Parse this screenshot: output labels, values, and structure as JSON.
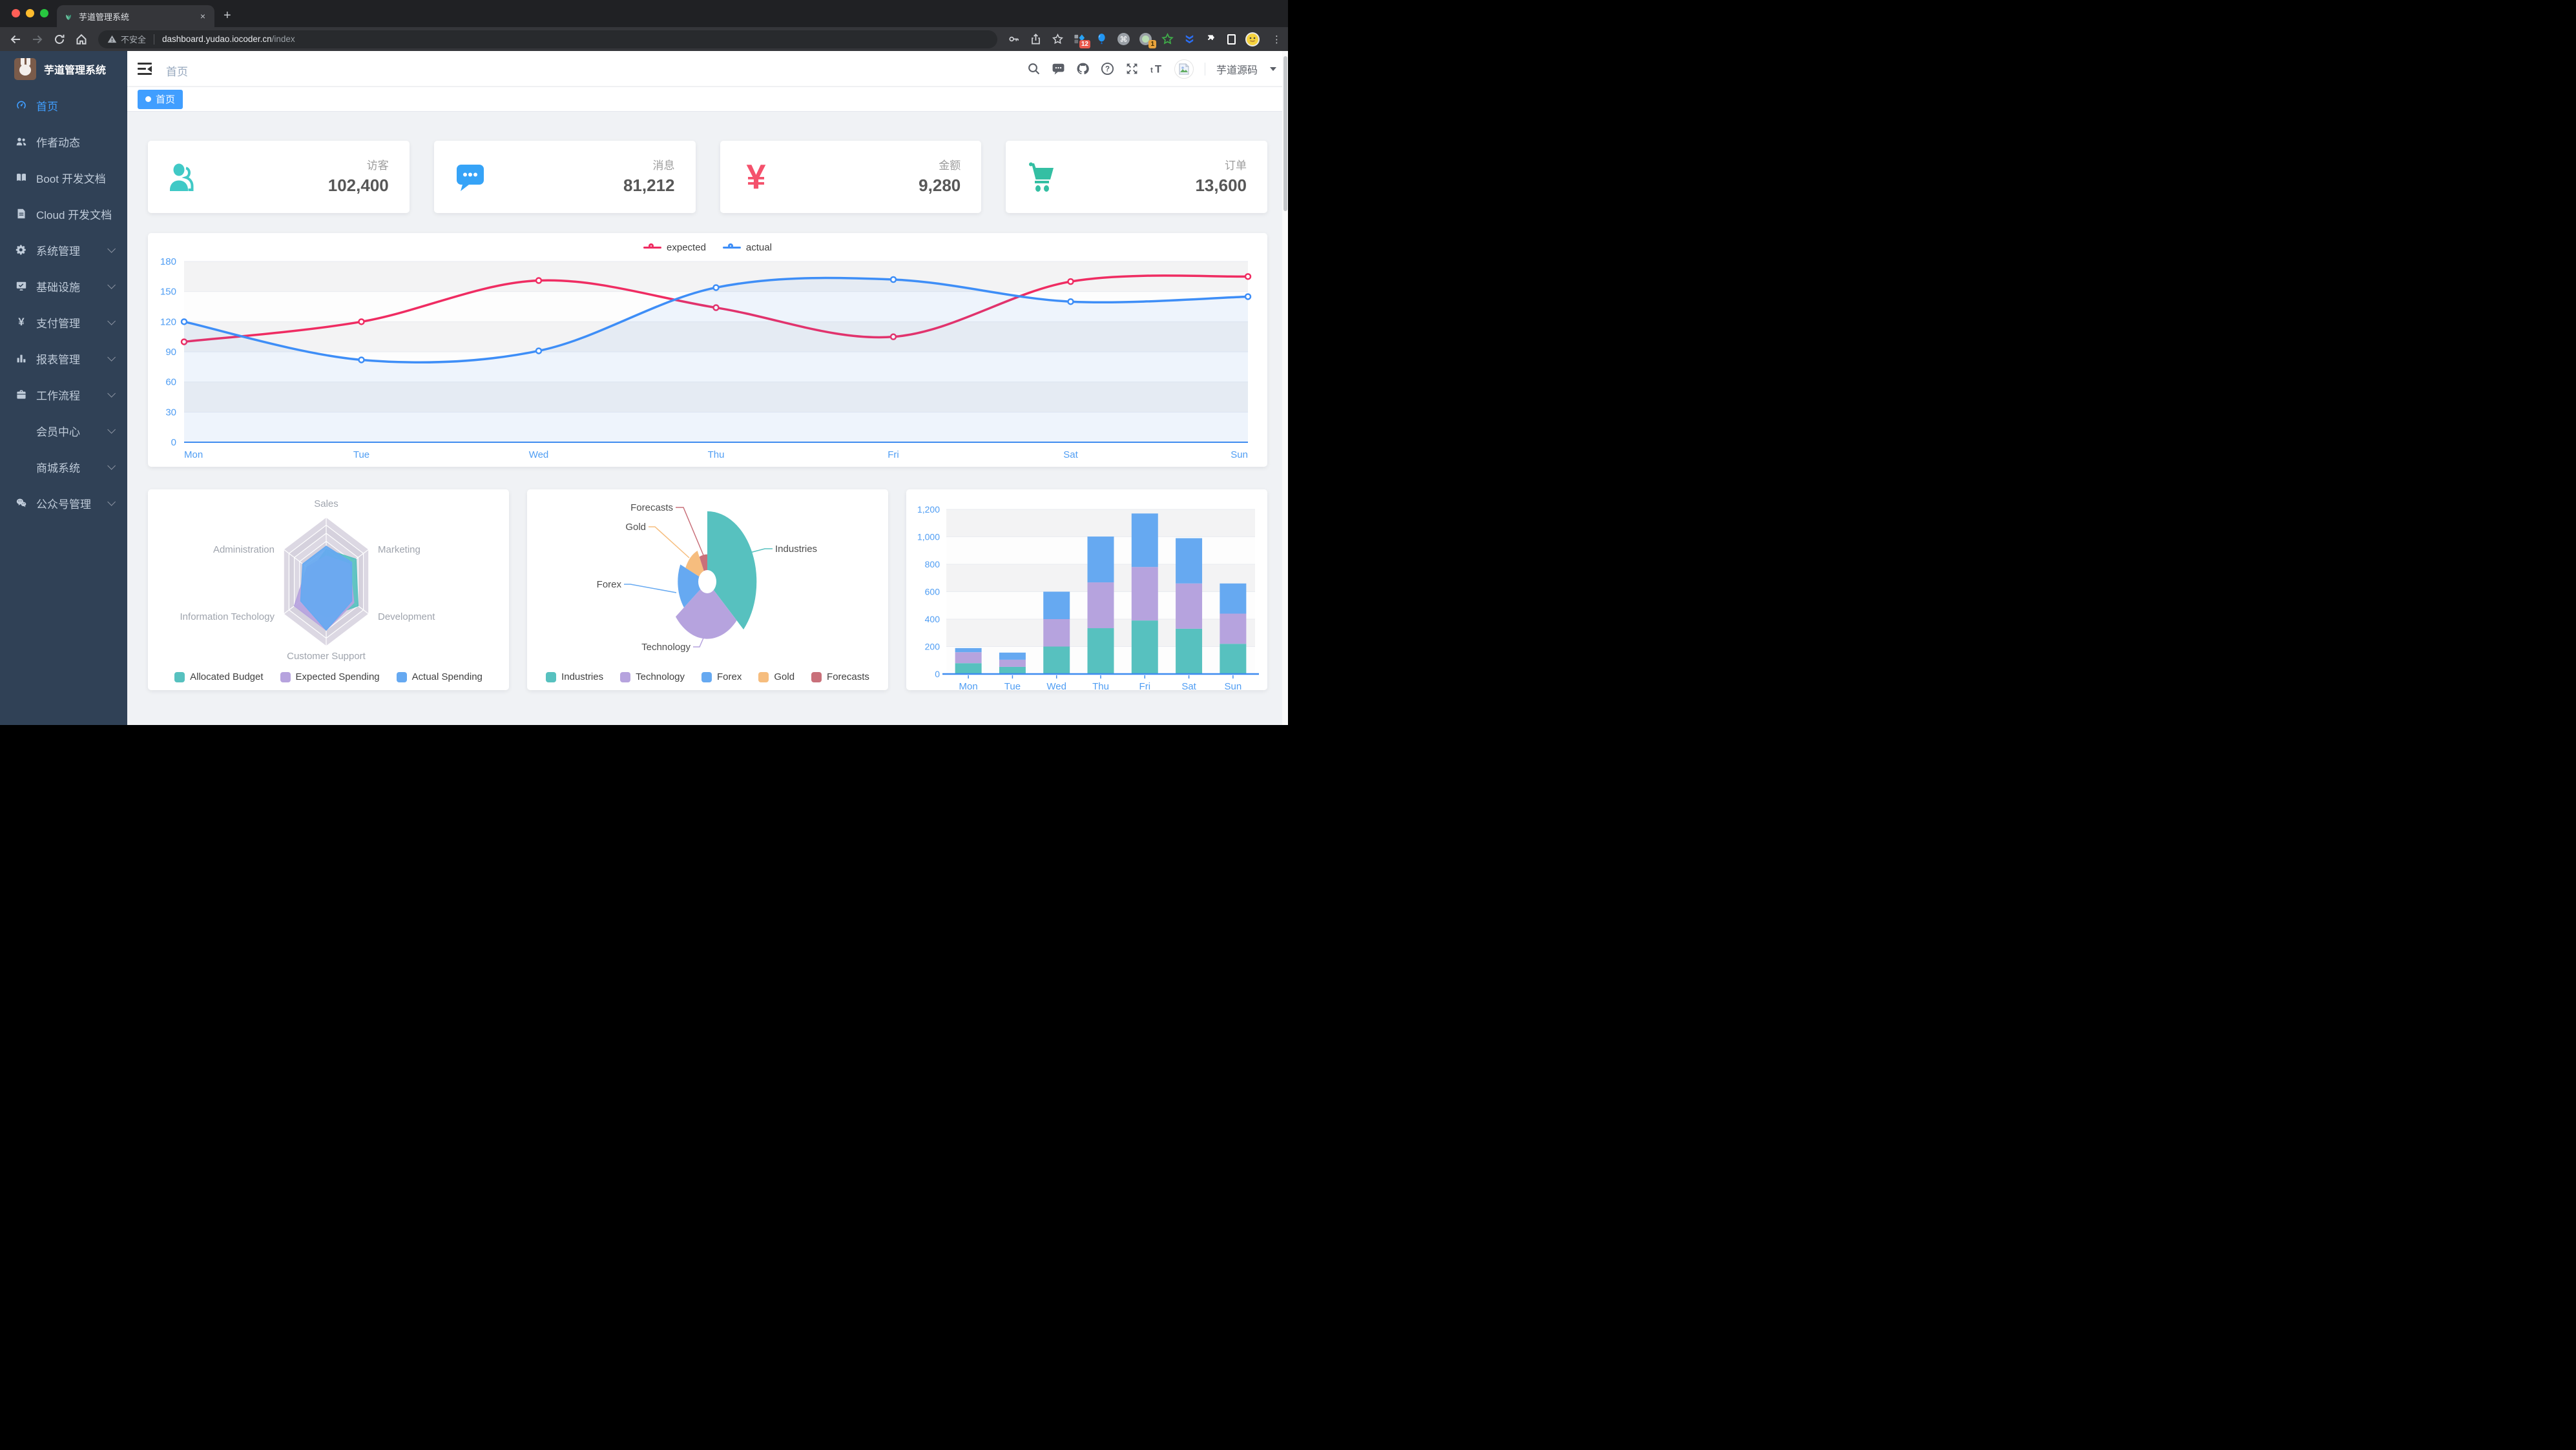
{
  "browser": {
    "tab_title": "芋道管理系统",
    "new_tab_label": "+",
    "close_tab_label": "×",
    "security_label": "不安全",
    "url_host": "dashboard.yudao.iocoder.cn",
    "url_path": "/index",
    "extension_badge_tabs": "12",
    "extension_badge_one": "1",
    "menu_dots": "⋮"
  },
  "sidebar": {
    "title": "芋道管理系统",
    "items": [
      {
        "label": "首页",
        "icon": "dashboard-icon",
        "active": true
      },
      {
        "label": "作者动态",
        "icon": "people-icon"
      },
      {
        "label": "Boot 开发文档",
        "icon": "book-icon"
      },
      {
        "label": "Cloud 开发文档",
        "icon": "doc-icon"
      },
      {
        "label": "系统管理",
        "icon": "gear-icon",
        "chevron": true
      },
      {
        "label": "基础设施",
        "icon": "monitor-icon",
        "chevron": true
      },
      {
        "label": "支付管理",
        "icon": "yen-icon",
        "chevron": true
      },
      {
        "label": "报表管理",
        "icon": "chart-icon",
        "chevron": true
      },
      {
        "label": "工作流程",
        "icon": "briefcase-icon",
        "chevron": true
      },
      {
        "label": "会员中心",
        "indent": true,
        "chevron": true
      },
      {
        "label": "商城系统",
        "indent": true,
        "chevron": true
      },
      {
        "label": "公众号管理",
        "icon": "wechat-icon",
        "chevron": true
      }
    ]
  },
  "header": {
    "breadcrumb": "首页",
    "username": "芋道源码"
  },
  "tags": [
    {
      "label": "首页",
      "active": true
    }
  ],
  "stats": [
    {
      "label": "访客",
      "value": "102,400",
      "icon": "peoples-icon",
      "color": "#40c9c6"
    },
    {
      "label": "消息",
      "value": "81,212",
      "icon": "message-icon",
      "color": "#36a3f7"
    },
    {
      "label": "金额",
      "value": "9,280",
      "icon": "money-icon",
      "color": "#f4516c"
    },
    {
      "label": "订单",
      "value": "13,600",
      "icon": "shopping-icon",
      "color": "#34bfa3"
    }
  ],
  "chart_data": [
    {
      "type": "line",
      "x": [
        "Mon",
        "Tue",
        "Wed",
        "Thu",
        "Fri",
        "Sat",
        "Sun"
      ],
      "series": [
        {
          "name": "expected",
          "color": "#ef2c62",
          "values": [
            100,
            120,
            161,
            134,
            105,
            160,
            165
          ],
          "area": false
        },
        {
          "name": "actual",
          "color": "#3e8ef7",
          "values": [
            120,
            82,
            91,
            154,
            162,
            140,
            145
          ],
          "area": true
        }
      ],
      "ylim": [
        0,
        180
      ],
      "ytick": 30,
      "legend_position": "top",
      "grid": true
    },
    {
      "type": "radar",
      "indicators": [
        {
          "name": "Sales",
          "max": 10000
        },
        {
          "name": "Marketing",
          "max": 20000
        },
        {
          "name": "Development",
          "max": 20000
        },
        {
          "name": "Customer Support",
          "max": 20000
        },
        {
          "name": "Information Techology",
          "max": 20000
        },
        {
          "name": "Administration",
          "max": 20000
        }
      ],
      "series": [
        {
          "name": "Allocated Budget",
          "color": "#57c1bf",
          "values": [
            5000,
            14000,
            15000,
            11000,
            12000,
            7000
          ]
        },
        {
          "name": "Expected Spending",
          "color": "#b6a3de",
          "values": [
            4000,
            11000,
            13000,
            15000,
            15000,
            9000
          ]
        },
        {
          "name": "Actual Spending",
          "color": "#66a9f1",
          "values": [
            5500,
            12000,
            12000,
            15000,
            12000,
            11000
          ]
        }
      ],
      "legend_position": "bottom"
    },
    {
      "type": "pie",
      "rose": true,
      "slices": [
        {
          "name": "Industries",
          "value": 320,
          "color": "#57c1bf"
        },
        {
          "name": "Technology",
          "value": 240,
          "color": "#b6a3de"
        },
        {
          "name": "Forex",
          "value": 149,
          "color": "#66a9f1"
        },
        {
          "name": "Gold",
          "value": 100,
          "color": "#f6bd7e"
        },
        {
          "name": "Forecasts",
          "value": 59,
          "color": "#c9707a"
        }
      ],
      "legend_position": "bottom"
    },
    {
      "type": "bar",
      "stacked": true,
      "categories": [
        "Mon",
        "Tue",
        "Wed",
        "Thu",
        "Fri",
        "Sat",
        "Sun"
      ],
      "series": [
        {
          "color": "#57c1bf",
          "values": [
            79,
            52,
            200,
            334,
            390,
            330,
            220
          ]
        },
        {
          "color": "#b6a3de",
          "values": [
            80,
            52,
            200,
            334,
            390,
            330,
            220
          ]
        },
        {
          "color": "#66a9f1",
          "values": [
            30,
            52,
            200,
            334,
            390,
            330,
            220
          ]
        }
      ],
      "ylim": [
        0,
        1200
      ],
      "ytick": 200,
      "grid": true
    }
  ]
}
